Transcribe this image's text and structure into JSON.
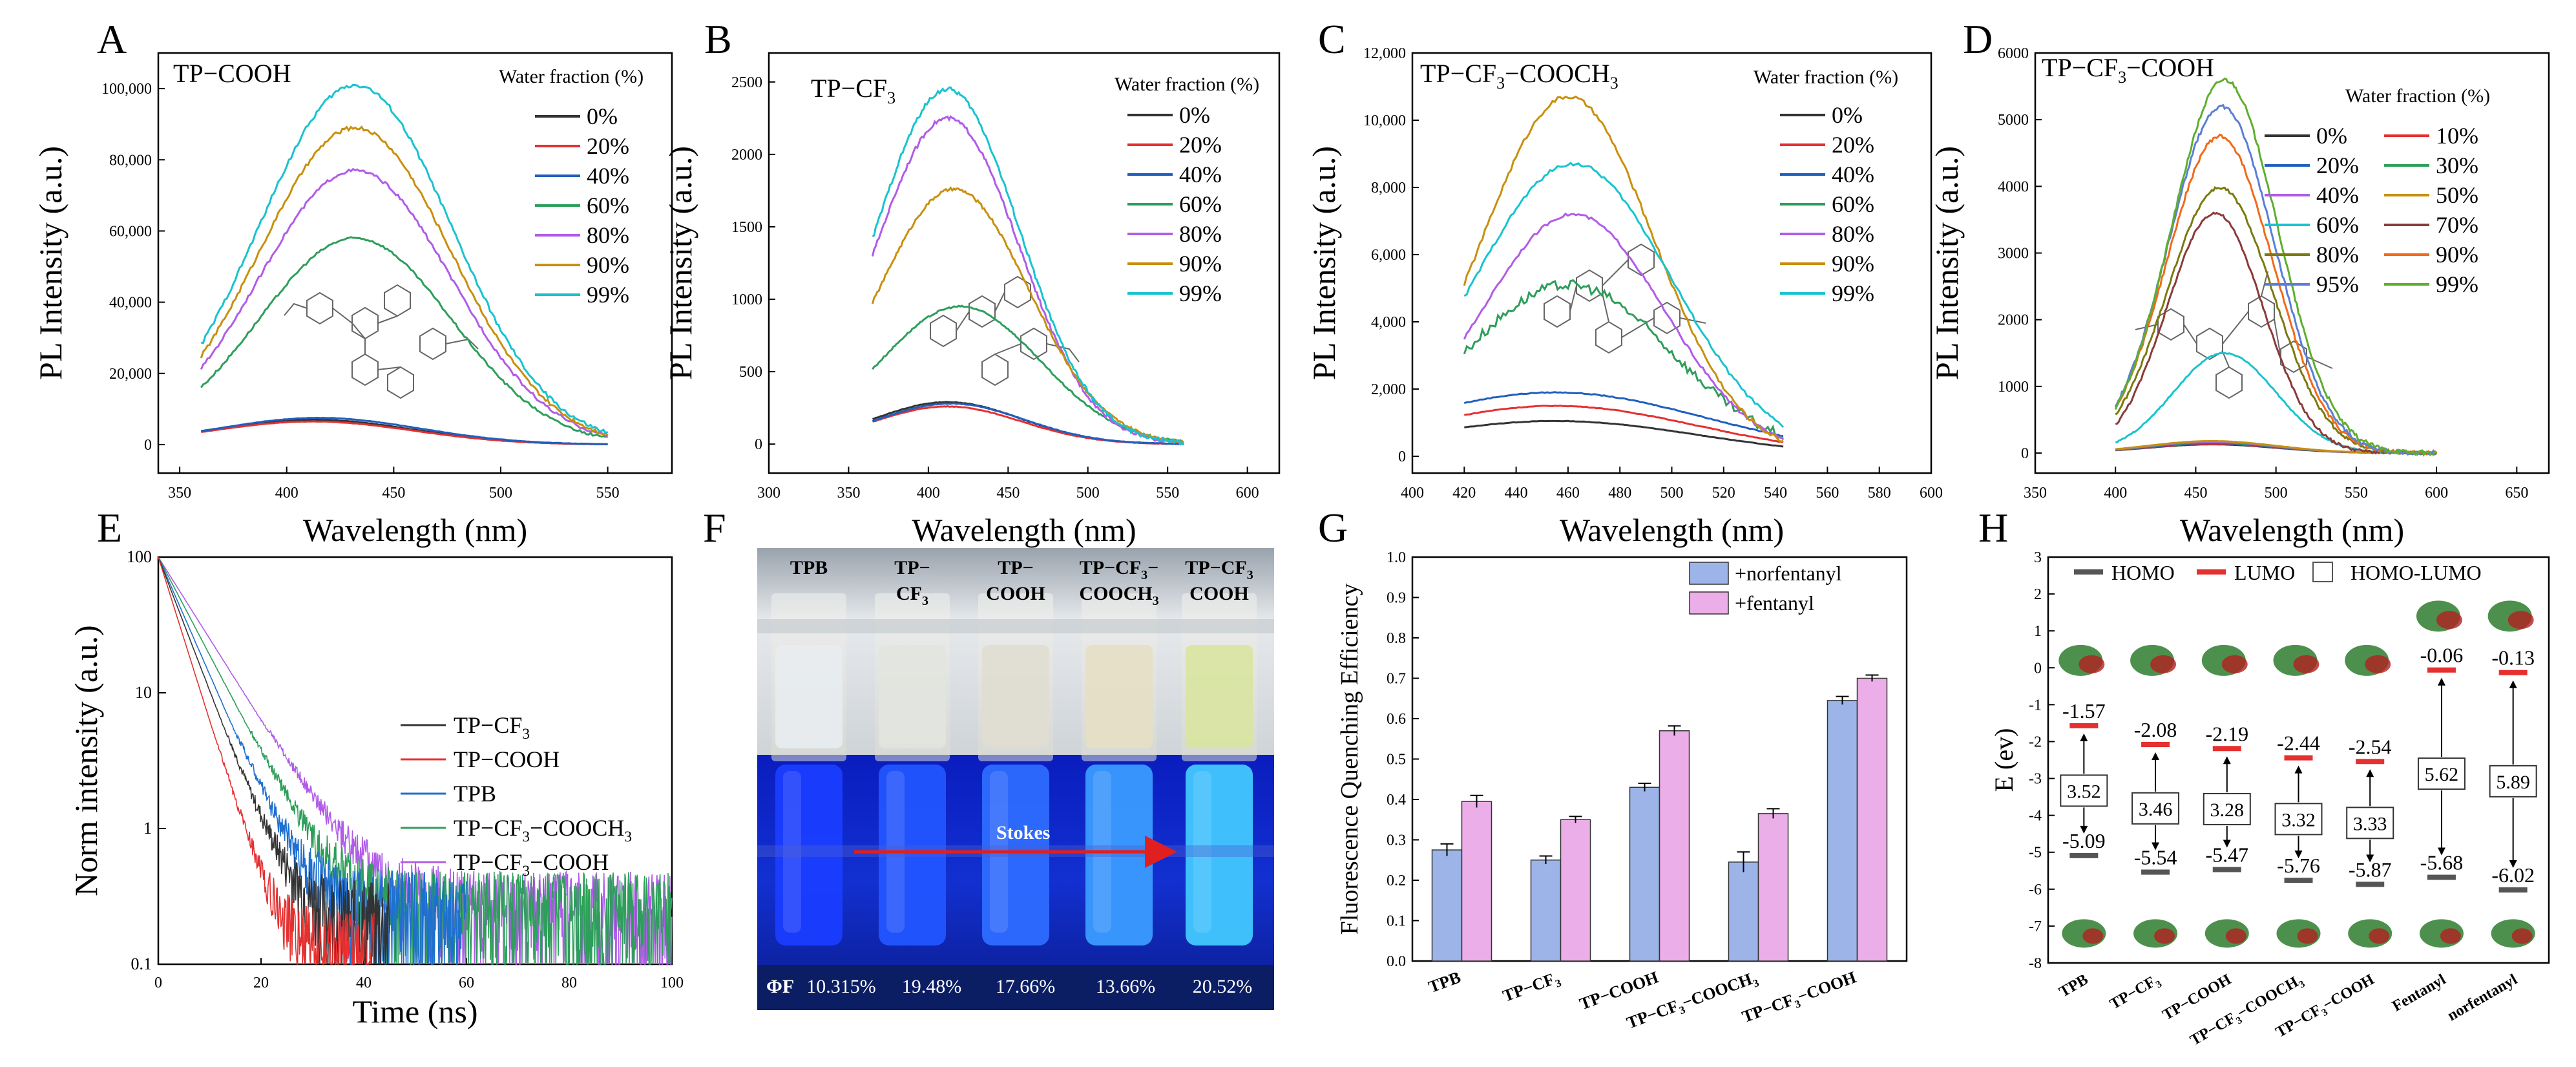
{
  "panels": {
    "A": {
      "letter": "A",
      "compound": "TP−COOH",
      "legend_title": "Water fraction (%)",
      "chart_data": {
        "type": "line",
        "xlabel": "Wavelength (nm)",
        "ylabel": "PL Intensity (a.u.)",
        "xlim": [
          340,
          580
        ],
        "ylim": [
          -8000,
          110000
        ],
        "xticks": [
          350,
          400,
          450,
          500,
          550
        ],
        "yticks": [
          0,
          20000,
          40000,
          60000,
          80000,
          100000
        ],
        "ytick_labels": [
          "0",
          "20,000",
          "40,000",
          "60,000",
          "80,000",
          "100,000"
        ],
        "x_range": [
          360,
          550
        ],
        "series": [
          {
            "name": "0%",
            "color": "#333333",
            "peak": 7000,
            "center": 412,
            "sigma": 47
          },
          {
            "name": "20%",
            "color": "#e53030",
            "peak": 6500,
            "center": 412,
            "sigma": 47
          },
          {
            "name": "40%",
            "color": "#1f5fbf",
            "peak": 7500,
            "center": 415,
            "sigma": 47
          },
          {
            "name": "60%",
            "color": "#2e9e5b",
            "peak": 58000,
            "center": 432,
            "sigma": 45
          },
          {
            "name": "80%",
            "color": "#b05ce8",
            "peak": 77000,
            "center": 432,
            "sigma": 45
          },
          {
            "name": "90%",
            "color": "#c8900e",
            "peak": 89000,
            "center": 432,
            "sigma": 45
          },
          {
            "name": "99%",
            "color": "#18c3cf",
            "peak": 101000,
            "center": 432,
            "sigma": 45
          }
        ]
      }
    },
    "B": {
      "letter": "B",
      "compound_main": "TP−CF",
      "compound_sub": "3",
      "compound_tail": "",
      "legend_title": "Water fraction (%)",
      "chart_data": {
        "type": "line",
        "xlabel": "Wavelength (nm)",
        "ylabel": "PL Intensity (a.u.)",
        "xlim": [
          300,
          620
        ],
        "ylim": [
          -200,
          2700
        ],
        "xticks": [
          300,
          350,
          400,
          450,
          500,
          550,
          600
        ],
        "yticks": [
          0,
          500,
          1000,
          1500,
          2000,
          2500
        ],
        "ytick_labels": [
          "0",
          "500",
          "1000",
          "1500",
          "2000",
          "2500"
        ],
        "x_range": [
          365,
          560
        ],
        "series": [
          {
            "name": "0%",
            "color": "#333333",
            "peak": 290,
            "center": 412,
            "sigma": 46
          },
          {
            "name": "20%",
            "color": "#e53030",
            "peak": 260,
            "center": 412,
            "sigma": 46
          },
          {
            "name": "40%",
            "color": "#1f5fbf",
            "peak": 280,
            "center": 414,
            "sigma": 46
          },
          {
            "name": "60%",
            "color": "#2e9e5b",
            "peak": 950,
            "center": 420,
            "sigma": 50
          },
          {
            "name": "80%",
            "color": "#b05ce8",
            "peak": 2250,
            "center": 412,
            "sigma": 45
          },
          {
            "name": "90%",
            "color": "#c8900e",
            "peak": 1760,
            "center": 416,
            "sigma": 47
          },
          {
            "name": "99%",
            "color": "#18c3cf",
            "peak": 2450,
            "center": 412,
            "sigma": 45
          }
        ]
      }
    },
    "C": {
      "letter": "C",
      "compound_main": "TP−CF",
      "compound_sub": "3",
      "compound_tail": "−COOCH",
      "compound_sub2": "3",
      "legend_title": "Water fraction (%)",
      "chart_data": {
        "type": "line",
        "xlabel": "Wavelength (nm)",
        "ylabel": "PL Intensity (a.u.)",
        "xlim": [
          400,
          600
        ],
        "ylim": [
          -500,
          12000
        ],
        "xticks": [
          400,
          420,
          440,
          460,
          480,
          500,
          520,
          540,
          560,
          580,
          600
        ],
        "yticks": [
          0,
          2000,
          4000,
          6000,
          8000,
          10000,
          12000
        ],
        "ytick_labels": [
          "0",
          "2,000",
          "4,000",
          "6,000",
          "8,000",
          "10,000",
          "12,000"
        ],
        "x_range": [
          420,
          543
        ],
        "series": [
          {
            "name": "0%",
            "color": "#333333",
            "peak": 1050,
            "center": 455,
            "sigma": 55
          },
          {
            "name": "20%",
            "color": "#e53030",
            "peak": 1500,
            "center": 455,
            "sigma": 55
          },
          {
            "name": "40%",
            "color": "#1f5fbf",
            "peak": 1900,
            "center": 455,
            "sigma": 58
          },
          {
            "name": "60%",
            "color": "#2e9e5b",
            "peak": 5100,
            "center": 460,
            "sigma": 40
          },
          {
            "name": "80%",
            "color": "#b05ce8",
            "peak": 7200,
            "center": 462,
            "sigma": 35
          },
          {
            "name": "90%",
            "color": "#c8900e",
            "peak": 10700,
            "center": 460,
            "sigma": 33
          },
          {
            "name": "99%",
            "color": "#18c3cf",
            "peak": 8700,
            "center": 462,
            "sigma": 38
          }
        ]
      }
    },
    "D": {
      "letter": "D",
      "compound_main": "TP−CF",
      "compound_sub": "3",
      "compound_tail": "−COOH",
      "legend_title": "Water fraction (%)",
      "chart_data": {
        "type": "line",
        "xlabel": "Wavelength (nm)",
        "ylabel": "PL Intensity (a.u.)",
        "xlim": [
          350,
          670
        ],
        "ylim": [
          -300,
          6000
        ],
        "xticks": [
          350,
          400,
          450,
          500,
          550,
          600,
          650
        ],
        "yticks": [
          0,
          1000,
          2000,
          3000,
          4000,
          5000,
          6000
        ],
        "ytick_labels": [
          "0",
          "1000",
          "2000",
          "3000",
          "4000",
          "5000",
          "6000"
        ],
        "x_range": [
          400,
          600
        ],
        "series": [
          {
            "name": "0%",
            "color": "#333333",
            "peak": 130,
            "center": 460,
            "sigma": 40
          },
          {
            "name": "10%",
            "color": "#e53030",
            "peak": 140,
            "center": 460,
            "sigma": 40
          },
          {
            "name": "20%",
            "color": "#1f5fbf",
            "peak": 150,
            "center": 460,
            "sigma": 40
          },
          {
            "name": "30%",
            "color": "#2e9e5b",
            "peak": 160,
            "center": 460,
            "sigma": 40
          },
          {
            "name": "40%",
            "color": "#b05ce8",
            "peak": 170,
            "center": 460,
            "sigma": 40
          },
          {
            "name": "50%",
            "color": "#c8900e",
            "peak": 180,
            "center": 460,
            "sigma": 40
          },
          {
            "name": "60%",
            "color": "#18c3cf",
            "peak": 1500,
            "center": 468,
            "sigma": 32
          },
          {
            "name": "70%",
            "color": "#8b3a3a",
            "peak": 3600,
            "center": 462,
            "sigma": 30
          },
          {
            "name": "80%",
            "color": "#7a7a10",
            "peak": 3980,
            "center": 465,
            "sigma": 33
          },
          {
            "name": "90%",
            "color": "#f06a1a",
            "peak": 4750,
            "center": 465,
            "sigma": 33
          },
          {
            "name": "95%",
            "color": "#5b7fd6",
            "peak": 5200,
            "center": 466,
            "sigma": 33
          },
          {
            "name": "99%",
            "color": "#5fae2e",
            "peak": 5600,
            "center": 468,
            "sigma": 33
          }
        ]
      }
    },
    "E": {
      "letter": "E",
      "chart_data": {
        "type": "line",
        "xlabel": "Time (ns)",
        "ylabel": "Norm intensity (a.u.)",
        "yscale": "log",
        "xlim": [
          0,
          100
        ],
        "ylim": [
          0.1,
          100
        ],
        "xticks": [
          0,
          20,
          40,
          60,
          80,
          100
        ],
        "yticks": [
          0.1,
          1,
          10,
          100
        ],
        "ytick_labels": [
          "0.1",
          "1",
          "10",
          "100"
        ],
        "series": [
          {
            "name": "TP−CF",
            "sub": "3",
            "tail": "",
            "color": "#333333",
            "tau": 4.4,
            "noise_floor": 0.25,
            "end": 45
          },
          {
            "name": "TP−COOH",
            "sub": "",
            "tail": "",
            "color": "#e53030",
            "tau": 3.6,
            "noise_floor": 0.15,
            "end": 42
          },
          {
            "name": "TPB",
            "sub": "",
            "tail": "",
            "color": "#1f6fcf",
            "tau": 5.0,
            "noise_floor": 0.3,
            "end": 60
          },
          {
            "name": "TP−CF",
            "sub": "3",
            "tail": "−COOCH",
            "sub2": "3",
            "color": "#2e9e5b",
            "tau": 6.0,
            "noise_floor": 0.3,
            "end": 100
          },
          {
            "name": "TP−CF",
            "sub": "3",
            "tail": "−COOH",
            "color": "#b05ce8",
            "tau": 7.2,
            "noise_floor": 0.3,
            "end": 100
          }
        ]
      }
    },
    "F": {
      "letter": "F",
      "tube_labels": [
        {
          "l1": "TPB",
          "l2": ""
        },
        {
          "l1": "TP−",
          "l2": "CF",
          "sub": "3"
        },
        {
          "l1": "TP−",
          "l2": "COOH"
        },
        {
          "l1": "TP−CF",
          "sub1": "3",
          "tail": "−",
          "l2": "COOCH",
          "sub": "3"
        },
        {
          "l1": "TP−CF",
          "sub1": "3",
          "l2": "COOH"
        }
      ],
      "stokes_label": "Stokes",
      "phi_label": "ΦF",
      "phi_values": [
        "10.315%",
        "19.48%",
        "17.66%",
        "13.66%",
        "20.52%"
      ]
    },
    "G": {
      "letter": "G",
      "chart_data": {
        "type": "bar",
        "ylabel": "Fluorescence Quenching Efficiency",
        "ylim": [
          0,
          1.0
        ],
        "yticks": [
          0.0,
          0.1,
          0.2,
          0.3,
          0.4,
          0.5,
          0.6,
          0.7,
          0.8,
          0.9,
          1.0
        ],
        "ytick_labels": [
          "0.0",
          "0.1",
          "0.2",
          "0.3",
          "0.4",
          "0.5",
          "0.6",
          "0.7",
          "0.8",
          "0.9",
          "1.0"
        ],
        "categories": [
          {
            "main": "TPB"
          },
          {
            "main": "TP−CF",
            "sub": "3"
          },
          {
            "main": "TP−COOH"
          },
          {
            "main": "TP−CF",
            "sub": "3",
            "tail": "−COOCH",
            "sub2": "3"
          },
          {
            "main": "TP−CF",
            "sub": "3",
            "tail": "−COOH"
          }
        ],
        "series": [
          {
            "name": "+norfentanyl",
            "color": "#9cb4e8",
            "values": [
              0.275,
              0.25,
              0.43,
              0.245,
              0.645
            ],
            "errors": [
              0.015,
              0.01,
              0.01,
              0.025,
              0.01
            ]
          },
          {
            "name": "+fentanyl",
            "color": "#ecaee8",
            "values": [
              0.395,
              0.35,
              0.57,
              0.365,
              0.7
            ],
            "errors": [
              0.015,
              0.008,
              0.012,
              0.012,
              0.008
            ]
          }
        ]
      }
    },
    "H": {
      "letter": "H",
      "chart_data": {
        "type": "energy-level",
        "ylabel": "E (ev)",
        "ylim": [
          -8,
          3
        ],
        "yticks": [
          -8,
          -7,
          -6,
          -5,
          -4,
          -3,
          -2,
          -1,
          0,
          1,
          2,
          3
        ],
        "ytick_labels": [
          "-8",
          "-7",
          "-6",
          "-5",
          "-4",
          "-3",
          "-2",
          "-1",
          "0",
          "1",
          "2",
          "3"
        ],
        "legend": [
          "HOMO",
          "LUMO",
          "HOMO-LUMO"
        ],
        "categories": [
          {
            "main": "TPB"
          },
          {
            "main": "TP−CF",
            "sub": "3"
          },
          {
            "main": "TP−COOH"
          },
          {
            "main": "TP−CF",
            "sub": "3",
            "tail": "−COOCH",
            "sub2": "3"
          },
          {
            "main": "TP−CF",
            "sub": "3",
            "tail": "−COOH"
          },
          {
            "main": "Fentanyl"
          },
          {
            "main": "norfentanyl"
          }
        ],
        "lumo": [
          -1.57,
          -2.08,
          -2.19,
          -2.44,
          -2.54,
          -0.06,
          -0.13
        ],
        "homo": [
          -5.09,
          -5.54,
          -5.47,
          -5.76,
          -5.87,
          -5.68,
          -6.02
        ],
        "gap": [
          3.52,
          3.46,
          3.28,
          3.32,
          3.33,
          5.62,
          5.89
        ],
        "lumo_labels": [
          "-1.57",
          "-2.08",
          "-2.19",
          "-2.44",
          "-2.54",
          "-0.06",
          "-0.13"
        ],
        "homo_labels": [
          "-5.09",
          "-5.54",
          "-5.47",
          "-5.76",
          "-5.87",
          "-5.68",
          "-6.02"
        ],
        "gap_labels": [
          "3.52",
          "3.46",
          "3.28",
          "3.32",
          "3.33",
          "5.62",
          "5.89"
        ]
      }
    }
  }
}
